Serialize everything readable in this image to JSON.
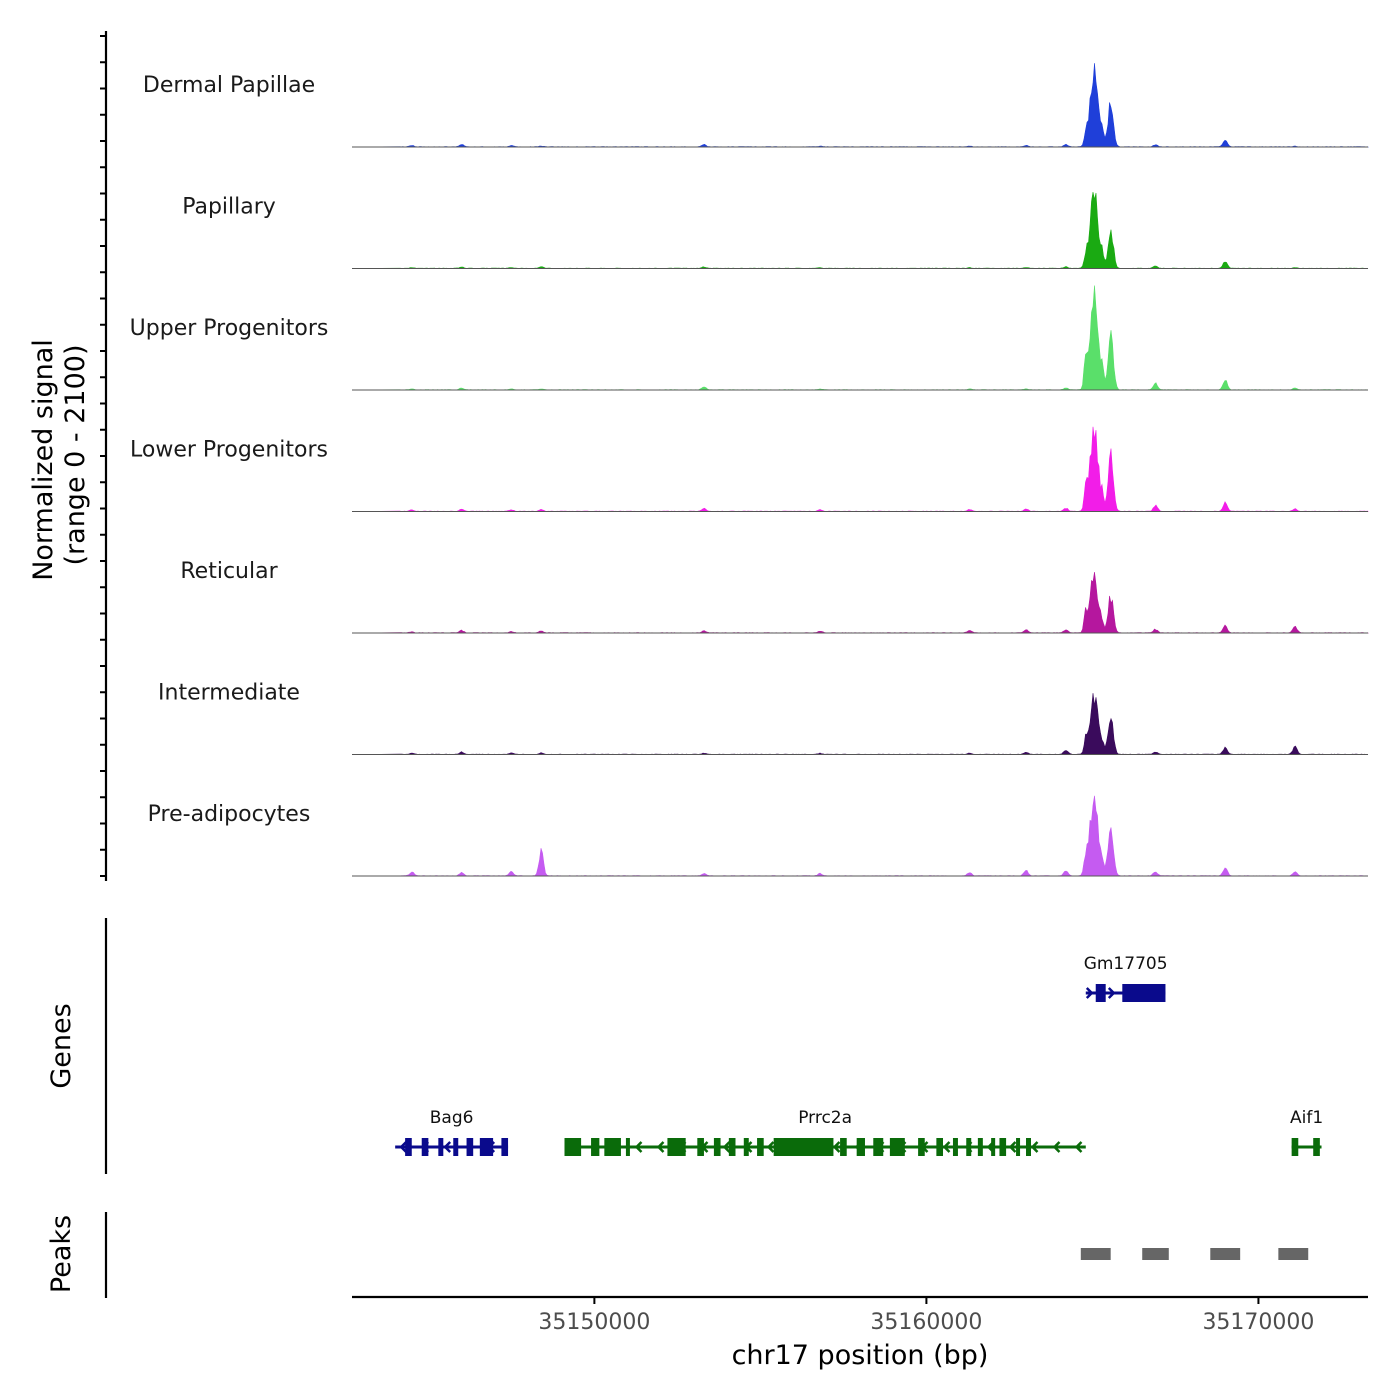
{
  "chart_data": {
    "type": "area",
    "title": "",
    "chromosome": "chr17",
    "xlabel": "chr17 position (bp)",
    "ylabel_line1": "Normalized signal",
    "ylabel_line2": "(range 0 - 2100)",
    "y_range": [
      0,
      2100
    ],
    "xlim": [
      35142700,
      35173300
    ],
    "x_ticks": [
      35150000,
      35160000,
      35170000
    ],
    "x_tick_labels": [
      "35150000",
      "35160000",
      "35170000"
    ],
    "peak_profile": [
      [
        35144500,
        0.03
      ],
      [
        35146000,
        0.03
      ],
      [
        35147500,
        0.02
      ],
      [
        35148400,
        0.03
      ],
      [
        35153300,
        0.02
      ],
      [
        35156800,
        0.02
      ],
      [
        35161300,
        0.02
      ],
      [
        35163000,
        0.04
      ],
      [
        35164200,
        0.03
      ],
      [
        35164800,
        0.16
      ],
      [
        35165050,
        1.0
      ],
      [
        35165550,
        0.6
      ],
      [
        35166900,
        0.06
      ],
      [
        35169000,
        0.09
      ],
      [
        35171100,
        0.05
      ]
    ],
    "series": [
      {
        "name": "Dermal Papillae",
        "color": "#1F3FD9",
        "peak_scale": 0.65,
        "rel_peaks": [
          0.02,
          0.03,
          0.02,
          0.01,
          0.03,
          0.01,
          0.01,
          0.02,
          0.03,
          0.16,
          1.0,
          0.6,
          0.03,
          0.09,
          0.01
        ]
      },
      {
        "name": "Papillary",
        "color": "#1AAA12",
        "peak_scale": 0.65,
        "rel_peaks": [
          0.01,
          0.02,
          0.01,
          0.02,
          0.02,
          0.01,
          0.01,
          0.01,
          0.02,
          0.12,
          1.0,
          0.55,
          0.03,
          0.09,
          0.01
        ]
      },
      {
        "name": "Upper Progenitors",
        "color": "#5ADF6A",
        "peak_scale": 0.85,
        "rel_peaks": [
          0.01,
          0.02,
          0.01,
          0.01,
          0.03,
          0.01,
          0.01,
          0.01,
          0.02,
          0.28,
          1.0,
          0.6,
          0.07,
          0.11,
          0.02
        ]
      },
      {
        "name": "Lower Progenitors",
        "color": "#F21DE8",
        "peak_scale": 0.72,
        "rel_peaks": [
          0.02,
          0.03,
          0.02,
          0.02,
          0.04,
          0.02,
          0.02,
          0.03,
          0.04,
          0.25,
          1.0,
          0.7,
          0.07,
          0.1,
          0.03
        ]
      },
      {
        "name": "Reticular",
        "color": "#B5179E",
        "peak_scale": 0.52,
        "rel_peaks": [
          0.02,
          0.04,
          0.02,
          0.03,
          0.03,
          0.03,
          0.04,
          0.06,
          0.06,
          0.3,
          1.0,
          0.62,
          0.06,
          0.12,
          0.1
        ]
      },
      {
        "name": "Intermediate",
        "color": "#3A0B5C",
        "peak_scale": 0.52,
        "rel_peaks": [
          0.02,
          0.04,
          0.02,
          0.03,
          0.02,
          0.02,
          0.02,
          0.04,
          0.07,
          0.2,
          1.0,
          0.68,
          0.04,
          0.12,
          0.14
        ]
      },
      {
        "name": "Pre-adipocytes",
        "color": "#C55BF1",
        "peak_scale": 0.72,
        "rel_peaks": [
          0.05,
          0.04,
          0.05,
          0.3,
          0.03,
          0.03,
          0.04,
          0.07,
          0.06,
          0.2,
          1.0,
          0.62,
          0.05,
          0.1,
          0.05
        ]
      }
    ],
    "genes": [
      {
        "name": "Bag6",
        "start": 35144000,
        "end": 35147400,
        "strand": "-",
        "color": "#0A0A8C",
        "row": 2,
        "exons": [
          [
            35144300,
            35144500
          ],
          [
            35144800,
            35145000
          ],
          [
            35145300,
            35145450
          ],
          [
            35145750,
            35145900
          ],
          [
            35146150,
            35146350
          ],
          [
            35146550,
            35146950
          ],
          [
            35147200,
            35147400
          ]
        ]
      },
      {
        "name": "Prrc2a",
        "start": 35149100,
        "end": 35164800,
        "strand": "-",
        "color": "#0A6B0A",
        "row": 2,
        "exons": [
          [
            35149100,
            35149600
          ],
          [
            35149900,
            35150150
          ],
          [
            35150300,
            35150800
          ],
          [
            35150950,
            35151050
          ],
          [
            35152200,
            35152750
          ],
          [
            35153100,
            35153300
          ],
          [
            35153600,
            35153800
          ],
          [
            35154050,
            35154250
          ],
          [
            35154500,
            35154650
          ],
          [
            35154900,
            35155100
          ],
          [
            35155400,
            35157200
          ],
          [
            35157400,
            35157600
          ],
          [
            35157900,
            35158150
          ],
          [
            35158400,
            35158700
          ],
          [
            35158900,
            35159350
          ],
          [
            35159750,
            35159950
          ],
          [
            35160300,
            35160500
          ],
          [
            35160800,
            35160950
          ],
          [
            35161200,
            35161350
          ],
          [
            35161550,
            35161700
          ],
          [
            35161950,
            35162050
          ],
          [
            35162200,
            35162400
          ],
          [
            35162700,
            35162800
          ],
          [
            35163000,
            35163150
          ]
        ]
      },
      {
        "name": "Gm17705",
        "start": 35164800,
        "end": 35167200,
        "strand": "+",
        "color": "#0A0A8C",
        "row": 1,
        "exons": [
          [
            35165100,
            35165400
          ],
          [
            35165900,
            35167200
          ]
        ]
      },
      {
        "name": "Aif1",
        "start": 35171000,
        "end": 35171900,
        "strand": "+",
        "color": "#0A6B0A",
        "row": 2,
        "exons": [
          [
            35171000,
            35171200
          ],
          [
            35171650,
            35171850
          ]
        ]
      }
    ],
    "peaks": [
      {
        "start": 35164650,
        "end": 35165550
      },
      {
        "start": 35166500,
        "end": 35167300
      },
      {
        "start": 35168550,
        "end": 35169450
      },
      {
        "start": 35170600,
        "end": 35171500
      }
    ],
    "panel_titles": {
      "genes": "Genes",
      "peaks": "Peaks"
    },
    "peak_color": "#666666"
  }
}
